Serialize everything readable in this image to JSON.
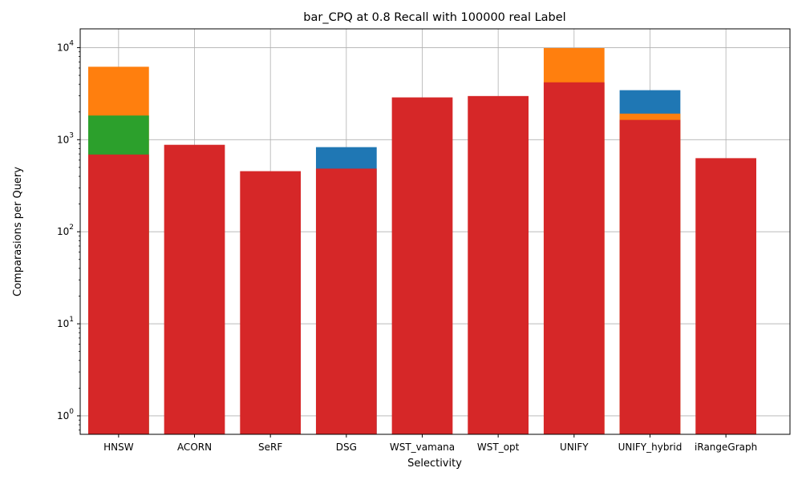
{
  "chart_data": {
    "type": "bar",
    "title": "bar_CPQ at 0.8 Recall with 100000 real Label",
    "xlabel": "Selectivity",
    "ylabel": "Comparasions per Query",
    "yscale": "log",
    "ylim": [
      0.63,
      16000
    ],
    "grid": true,
    "categories": [
      "HNSW",
      "ACORN",
      "SeRF",
      "DSG",
      "WST_vamana",
      "WST_opt",
      "UNIFY",
      "UNIFY_hybrid",
      "iRangeGraph"
    ],
    "yticks": [
      {
        "value": 1,
        "base": "10",
        "exp": "0"
      },
      {
        "value": 10,
        "base": "10",
        "exp": "1"
      },
      {
        "value": 100,
        "base": "10",
        "exp": "2"
      },
      {
        "value": 1000,
        "base": "10",
        "exp": "3"
      },
      {
        "value": 10000,
        "base": "10",
        "exp": "4"
      }
    ],
    "series": [
      {
        "color": "#1f77b4",
        "values": [
          null,
          null,
          null,
          830,
          null,
          null,
          null,
          3450,
          null
        ]
      },
      {
        "color": "#ff7f0e",
        "values": [
          6200,
          null,
          null,
          null,
          null,
          null,
          9900,
          1920,
          null
        ]
      },
      {
        "color": "#2ca02c",
        "values": [
          1830,
          null,
          null,
          null,
          null,
          null,
          null,
          null,
          null
        ]
      },
      {
        "color": "#d62728",
        "values": [
          690,
          880,
          455,
          485,
          2880,
          2980,
          4200,
          1640,
          630
        ]
      }
    ]
  }
}
